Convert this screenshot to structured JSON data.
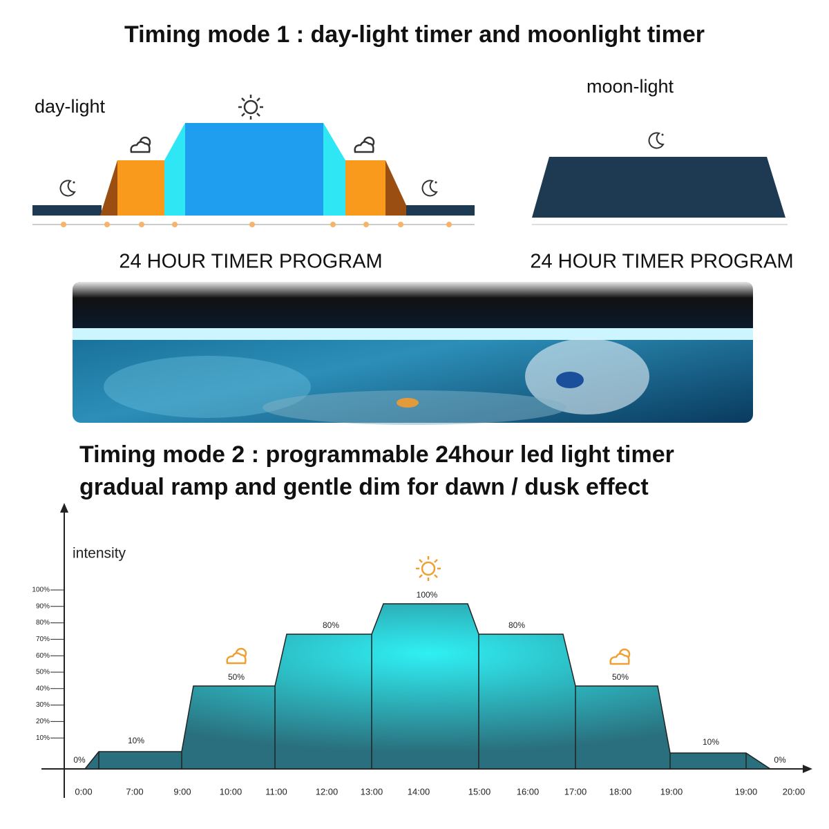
{
  "mode1": {
    "title": "Timing mode 1 : day-light timer and moonlight timer",
    "daylight": {
      "label": "day-light",
      "caption": "24 HOUR TIMER PROGRAM"
    },
    "moonlight": {
      "label": "moon-light",
      "caption": "24 HOUR TIMER PROGRAM"
    }
  },
  "mode2": {
    "title_lines": [
      "Timing mode 2 : programmable 24hour led light timer",
      "gradual ramp and gentle dim for dawn / dusk effect"
    ],
    "axis_label": "intensity",
    "y_labels": [
      "100%",
      "90%",
      "80%",
      "70%",
      "60%",
      "50%",
      "40%",
      "30%",
      "20%",
      "10%"
    ],
    "level_labels": [
      "0%",
      "10%",
      "50%",
      "80%",
      "100%",
      "80%",
      "50%",
      "10%",
      "0%"
    ],
    "x_labels": [
      "0:00",
      "7:00",
      "9:00",
      "10:00",
      "11:00",
      "12:00",
      "13:00",
      "14:00",
      "15:00",
      "16:00",
      "17:00",
      "18:00",
      "19:00",
      "19:00",
      "20:00"
    ]
  }
}
